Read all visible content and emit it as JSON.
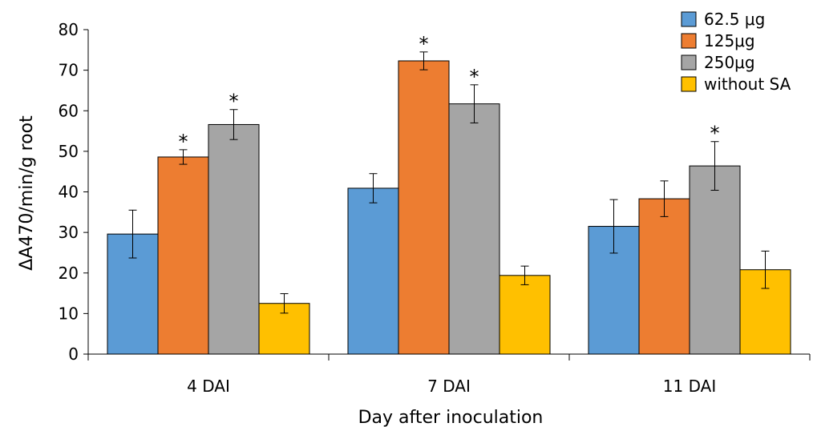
{
  "chart_data": {
    "type": "bar",
    "title": "",
    "xlabel": "Day after inoculation",
    "ylabel": "ΔA470/min/g root",
    "ylim": [
      0,
      80
    ],
    "yticks": [
      0,
      10,
      20,
      30,
      40,
      50,
      60,
      70,
      80
    ],
    "grid": false,
    "legend_position": "top-right",
    "categories": [
      "4 DAI",
      "7 DAI",
      "11 DAI"
    ],
    "series": [
      {
        "name": "62.5 μg",
        "color": "#5B9BD5",
        "values": [
          29.6,
          40.9,
          31.5
        ],
        "errors": [
          5.9,
          3.6,
          6.6
        ],
        "significant": [
          false,
          false,
          false
        ]
      },
      {
        "name": "125μg",
        "color": "#ED7D31",
        "values": [
          48.6,
          72.3,
          38.3
        ],
        "errors": [
          1.8,
          2.2,
          4.4
        ],
        "significant": [
          true,
          true,
          false
        ]
      },
      {
        "name": "250μg",
        "color": "#A5A5A5",
        "values": [
          56.6,
          61.7,
          46.4
        ],
        "errors": [
          3.7,
          4.7,
          6.0
        ],
        "significant": [
          true,
          true,
          true
        ]
      },
      {
        "name": "without SA",
        "color": "#FFC000",
        "values": [
          12.5,
          19.4,
          20.8
        ],
        "errors": [
          2.4,
          2.3,
          4.6
        ],
        "significant": [
          false,
          false,
          false
        ]
      }
    ],
    "significance_marker": "*"
  }
}
